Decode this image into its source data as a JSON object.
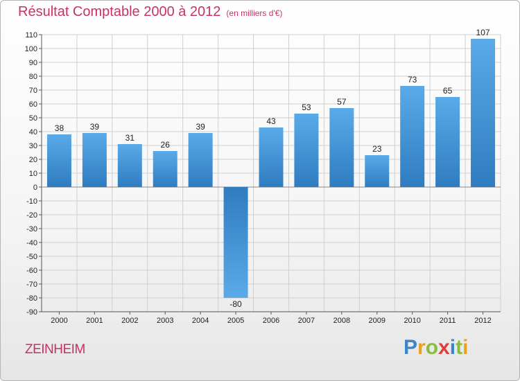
{
  "header": {
    "title": "Résultat Comptable 2000 à 2012",
    "subtitle": "(en milliers d'€)"
  },
  "footer": {
    "commune": "ZEINHEIM",
    "logo_letters": [
      {
        "ch": "P",
        "color": "#3b86c8"
      },
      {
        "ch": "r",
        "color": "#e6a21f"
      },
      {
        "ch": "o",
        "color": "#8bbd3c"
      },
      {
        "ch": "x",
        "color": "#e23b3b"
      },
      {
        "ch": "i",
        "color": "#3b86c8"
      },
      {
        "ch": "t",
        "color": "#8bbd3c"
      },
      {
        "ch": "i",
        "color": "#e6a21f"
      }
    ]
  },
  "colors": {
    "bar_light": "#5aaae8",
    "bar_dark": "#2f7cc0",
    "title": "#c7335f",
    "grid": "#cfcfcf"
  },
  "chart_data": {
    "type": "bar",
    "title": "Résultat Comptable 2000 à 2012",
    "subtitle": "(en milliers d'€)",
    "categories": [
      "2000",
      "2001",
      "2002",
      "2003",
      "2004",
      "2005",
      "2006",
      "2007",
      "2008",
      "2009",
      "2010",
      "2011",
      "2012"
    ],
    "values": [
      38,
      39,
      31,
      26,
      39,
      -80,
      43,
      53,
      57,
      23,
      73,
      65,
      107
    ],
    "ylim": [
      -90,
      110
    ],
    "yticks": [
      110,
      100,
      90,
      80,
      70,
      60,
      50,
      40,
      30,
      20,
      10,
      0,
      -10,
      -20,
      -30,
      -40,
      -50,
      -60,
      -70,
      -80,
      -90
    ],
    "grid": true,
    "xlabel": "",
    "ylabel": ""
  }
}
